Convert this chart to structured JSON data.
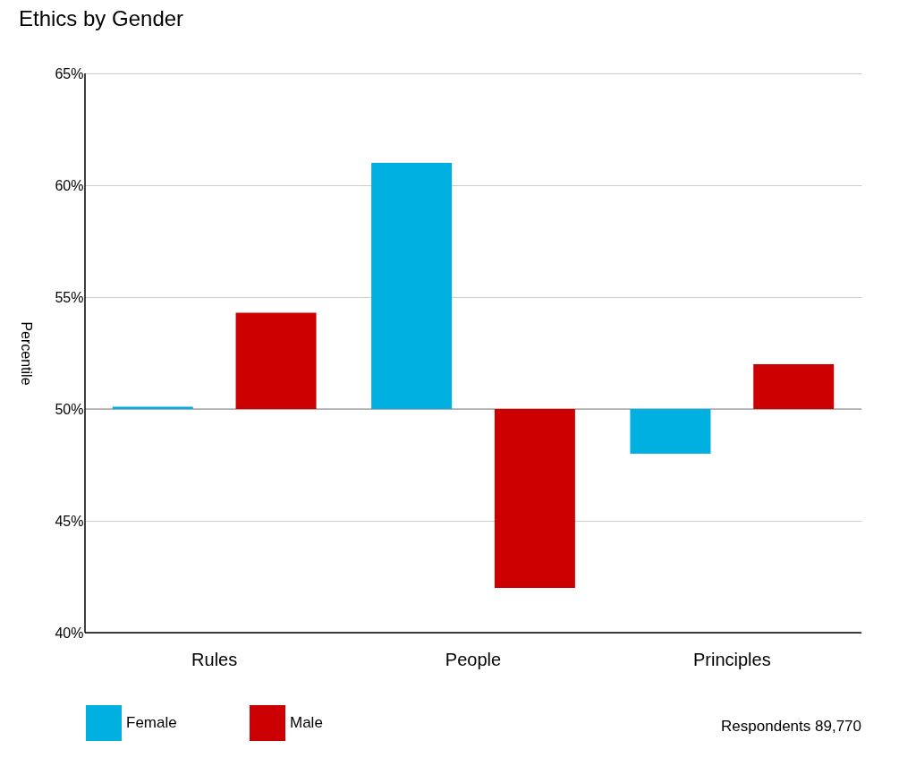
{
  "chart_data": {
    "type": "bar",
    "title": "Ethics by Gender",
    "ylabel": "Percentile",
    "categories": [
      "Rules",
      "People",
      "Principles"
    ],
    "series": [
      {
        "name": "Female",
        "color": "#00b0e0",
        "values": [
          0.1,
          11,
          -2
        ],
        "base": [
          50,
          50,
          50
        ]
      },
      {
        "name": "Male",
        "color": "#cc0000",
        "values": [
          4.3,
          -8,
          2
        ],
        "base": [
          50,
          50,
          50
        ]
      }
    ],
    "ylim": [
      40,
      65
    ],
    "yticks": [
      {
        "value": 40,
        "label": "40%"
      },
      {
        "value": 45,
        "label": "45%"
      },
      {
        "value": 50,
        "label": "50%"
      },
      {
        "value": 55,
        "label": "55%"
      },
      {
        "value": 60,
        "label": "60%"
      },
      {
        "value": 65,
        "label": "65%"
      }
    ],
    "ref_lines": [
      {
        "axis": "y",
        "value": 50,
        "label": null,
        "color": "#888888"
      }
    ],
    "grid": "y",
    "legend": "bottom",
    "annotations": [
      "Respondents 89,770"
    ]
  }
}
